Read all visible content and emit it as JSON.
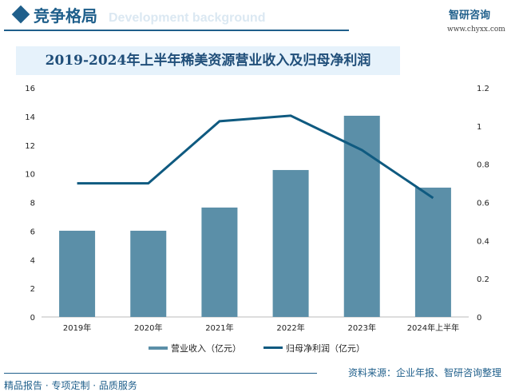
{
  "header": {
    "title": "竞争格局",
    "bg_text": "Development background",
    "logo": "智研咨询",
    "url": "www.chyxx.com"
  },
  "footer": {
    "left": "精品报告 · 专项定制 · 品质服务",
    "source": "资料来源：企业年报、智研咨询整理"
  },
  "chart_data": {
    "type": "bar+line",
    "title": "2019-2024年上半年稀美资源营业收入及归母净利润",
    "categories": [
      "2019年",
      "2020年",
      "2021年",
      "2022年",
      "2023年",
      "2024年上半年"
    ],
    "series": [
      {
        "name": "营业收入（亿元）",
        "type": "bar",
        "axis": "left",
        "color": "#5b8fa8",
        "values": [
          6.02,
          6.02,
          7.64,
          10.26,
          14.05,
          9.03
        ]
      },
      {
        "name": "归母净利润（亿元）",
        "type": "line",
        "axis": "right",
        "color": "#0f5a80",
        "values": [
          0.7,
          0.7,
          1.025,
          1.054,
          0.874,
          0.623
        ]
      }
    ],
    "ylim_left": [
      0,
      16
    ],
    "yticks_left": [
      "0",
      "2",
      "4",
      "6",
      "8",
      "10",
      "12",
      "14",
      "16"
    ],
    "ylim_right": [
      0,
      1.2
    ],
    "yticks_right": [
      "0",
      "0.2",
      "0.4",
      "0.6",
      "0.8",
      "1",
      "1.2"
    ],
    "grid": false,
    "legend": "bottom"
  }
}
